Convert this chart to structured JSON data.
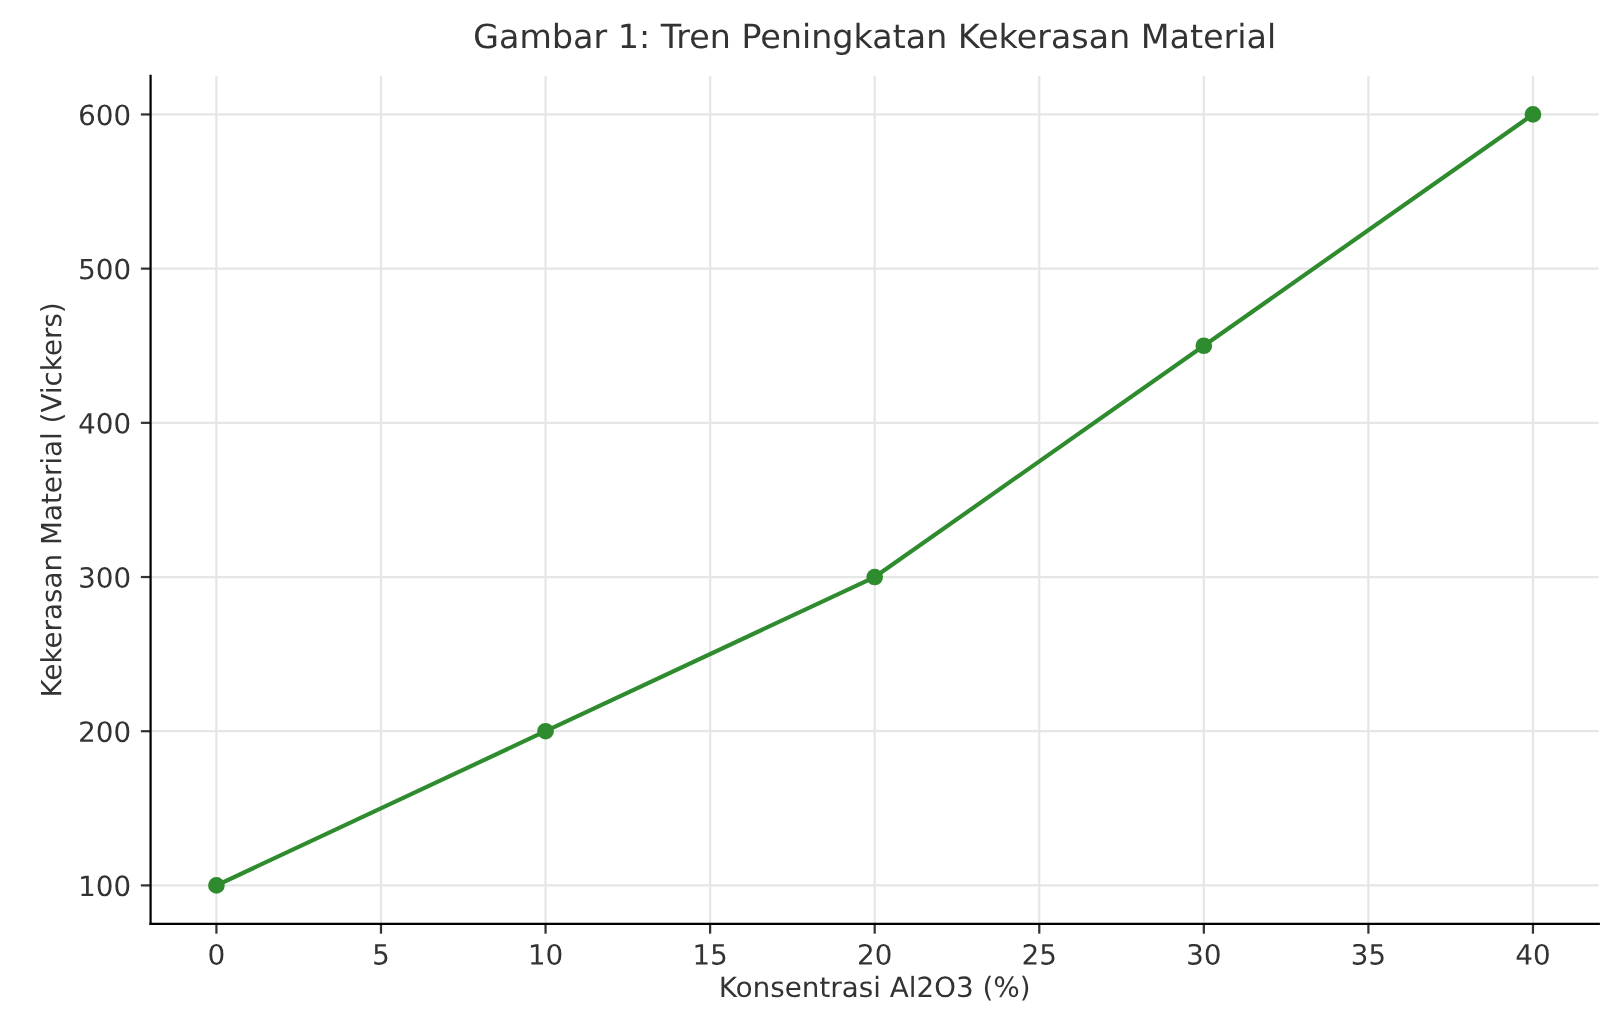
{
  "chart_data": {
    "type": "line",
    "title": "Gambar 1: Tren Peningkatan Kekerasan Material",
    "xlabel": "Konsentrasi Al2O3 (%)",
    "ylabel": "Kekerasan Material (Vickers)",
    "x": [
      0,
      10,
      20,
      30,
      40
    ],
    "series": [
      {
        "color": "#2e8b2e",
        "values": [
          100,
          200,
          300,
          450,
          600
        ]
      }
    ],
    "xlim": [
      -2,
      42
    ],
    "ylim": [
      75,
      625
    ],
    "xticks": [
      0,
      5,
      10,
      15,
      20,
      25,
      30,
      35,
      40
    ],
    "yticks": [
      100,
      200,
      300,
      400,
      500,
      600
    ],
    "grid": true,
    "marker": "circle",
    "line_style": "solid"
  }
}
